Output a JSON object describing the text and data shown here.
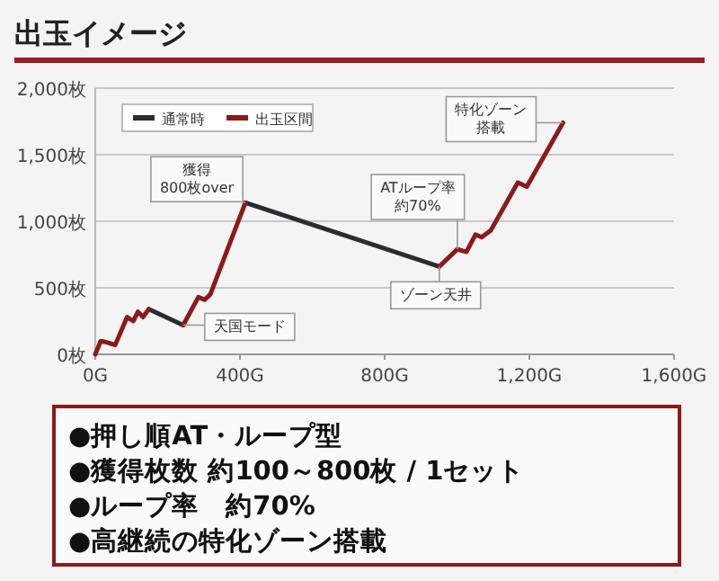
{
  "chart_data": {
    "type": "line",
    "title": "出玉イメージ",
    "xlim": [
      0,
      1600
    ],
    "xticks": [
      {
        "value": 0,
        "label": "0G"
      },
      {
        "value": 400,
        "label": "400G"
      },
      {
        "value": 800,
        "label": "800G"
      },
      {
        "value": 1200,
        "label": "1,200G"
      },
      {
        "value": 1600,
        "label": "1,600G"
      }
    ],
    "ylim": [
      0,
      2000
    ],
    "yticks": [
      {
        "value": 0,
        "label": "0枚"
      },
      {
        "value": 500,
        "label": "500枚"
      },
      {
        "value": 1000,
        "label": "1,000枚"
      },
      {
        "value": 1500,
        "label": "1,500枚"
      },
      {
        "value": 2000,
        "label": "2,000枚"
      }
    ],
    "grid": "y",
    "legend": "top left",
    "series": [
      {
        "name": "通常時",
        "color": "#2b2b33",
        "x": [
          148,
          243
        ],
        "values": [
          340,
          220
        ]
      },
      {
        "color": "#2b2b33",
        "x": [
          415,
          951
        ],
        "values": [
          1140,
          660
        ]
      },
      {
        "name": "出玉区間",
        "color": "#8b1a1a",
        "x": [
          0,
          15,
          32,
          55,
          88,
          105,
          118,
          132,
          148
        ],
        "values": [
          0,
          100,
          90,
          70,
          280,
          250,
          320,
          280,
          340
        ]
      },
      {
        "color": "#8b1a1a",
        "x": [
          243,
          285,
          302,
          318,
          415
        ],
        "values": [
          220,
          430,
          410,
          450,
          1140
        ]
      },
      {
        "color": "#8b1a1a",
        "x": [
          951,
          1001,
          1026,
          1051,
          1068,
          1093,
          1168,
          1193,
          1293
        ],
        "values": [
          660,
          790,
          770,
          900,
          880,
          930,
          1290,
          1260,
          1740
        ]
      }
    ],
    "annotations": [
      {
        "text": "獲得\n800枚over",
        "x": 415,
        "y": 1140
      },
      {
        "text": "天国モード",
        "x": 243,
        "y": 220
      },
      {
        "text": "ATループ率約70%",
        "x": 1001,
        "y": 790
      },
      {
        "text": "ゾーン天井",
        "x": 951,
        "y": 660
      },
      {
        "text": "特化ゾーン搭載",
        "x": 1293,
        "y": 1740
      },
      "●押し順AT・ループ型",
      "●獲得枚数 約100～800枚 / 1セット",
      "●ループ率　約70%",
      "●高継続の特化ゾーン搭載"
    ]
  }
}
